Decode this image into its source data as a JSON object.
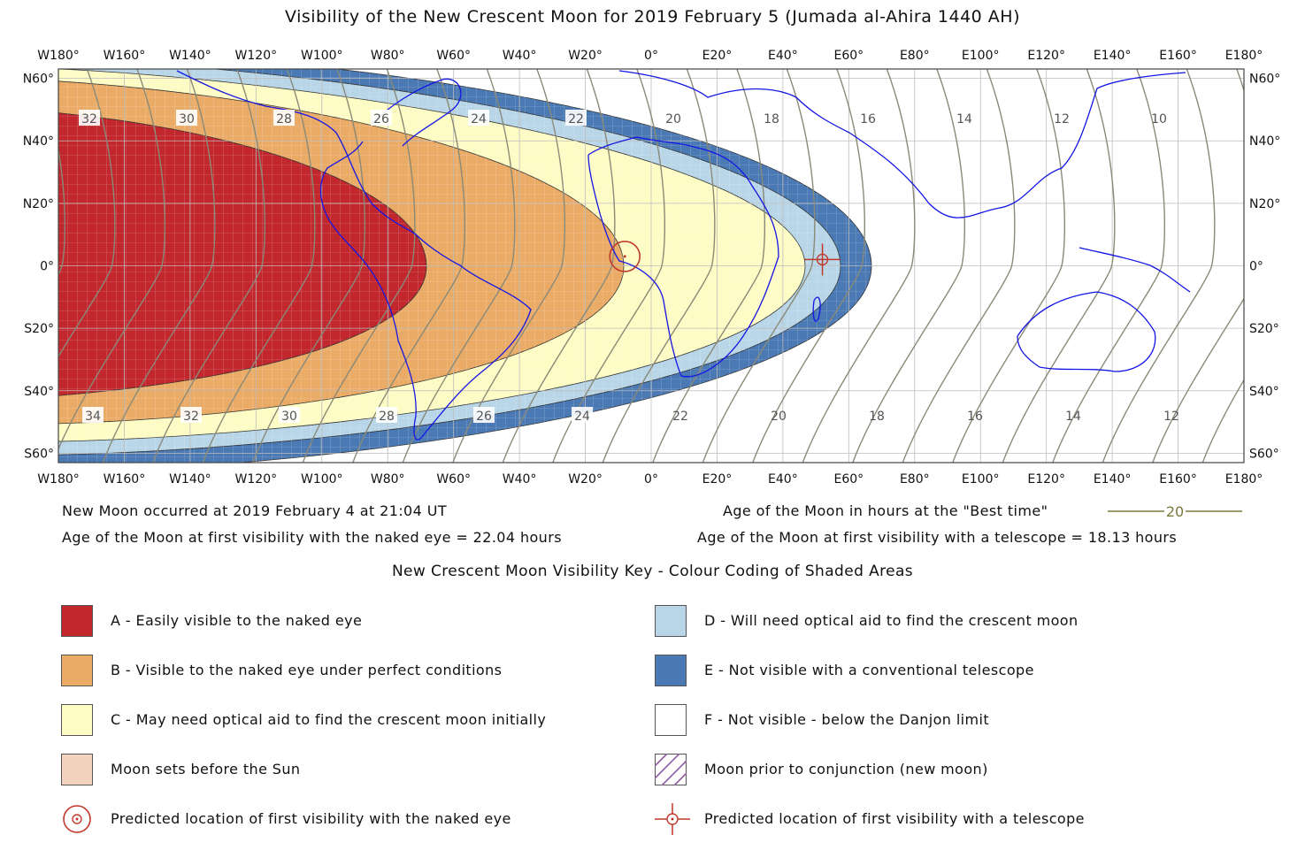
{
  "title": "Visibility of the New Crescent Moon for 2019 February 5 (Jumada al-Ahira 1440 AH)",
  "map": {
    "lon_labels": [
      "W180°",
      "W160°",
      "W140°",
      "W120°",
      "W100°",
      "W80°",
      "W60°",
      "W40°",
      "W20°",
      "0°",
      "E20°",
      "E40°",
      "E60°",
      "E80°",
      "E100°",
      "E120°",
      "E140°",
      "E160°",
      "E180°"
    ],
    "lat_labels": [
      "N60°",
      "N40°",
      "N20°",
      "0°",
      "S20°",
      "S40°",
      "S60°"
    ],
    "contour_labels_top": [
      "32",
      "30",
      "28",
      "26",
      "24",
      "22",
      "20",
      "18",
      "16",
      "14",
      "12",
      "10"
    ],
    "contour_labels_bottom": [
      "34",
      "32",
      "30",
      "28",
      "26",
      "24",
      "22",
      "20",
      "18",
      "16",
      "14",
      "12"
    ],
    "naked_eye_marker": {
      "lon": -8,
      "lat": 3
    },
    "telescope_marker": {
      "lon": 52,
      "lat": 2
    }
  },
  "info": {
    "new_moon": "New Moon occurred at 2019 February 4 at 21:04 UT",
    "naked_eye_age": "Age of the Moon at first visibility with the naked eye = 22.04 hours",
    "best_time_label": "Age of the Moon in hours at the \"Best time\"",
    "best_time_sample": "20",
    "telescope_age": "Age of the Moon at first visibility with a telescope = 18.13 hours"
  },
  "key": {
    "title": "New Crescent Moon Visibility Key - Colour Coding of Shaded Areas",
    "items": [
      {
        "label": "A - Easily visible to the naked eye",
        "color": "#c1272d"
      },
      {
        "label": "B - Visible to the naked eye under perfect conditions",
        "color": "#eaab66"
      },
      {
        "label": "C - May need optical aid to find the crescent moon initially",
        "color": "#fefcc5"
      },
      {
        "label": "Moon sets before the Sun",
        "color": "#f3d2bf"
      },
      {
        "label": "Predicted location of first visibility with the naked eye",
        "icon": "naked-eye-symbol"
      },
      {
        "label": "D - Will need optical aid to find the crescent moon",
        "color": "#b8d6e8"
      },
      {
        "label": "E - Not visible with a conventional telescope",
        "color": "#4a79b4"
      },
      {
        "label": "F - Not visible - below the Danjon limit",
        "color": "#ffffff"
      },
      {
        "label": "Moon prior to conjunction (new moon)",
        "pattern": "purple-hatch"
      },
      {
        "label": "Predicted location of first visibility with a telescope",
        "icon": "telescope-symbol"
      }
    ]
  },
  "colors": {
    "coastline": "#1515e6",
    "borders": "#b48a6a",
    "contours": "#8a8a78",
    "grid": "#c8c8c8",
    "marker": "#c0392b"
  }
}
